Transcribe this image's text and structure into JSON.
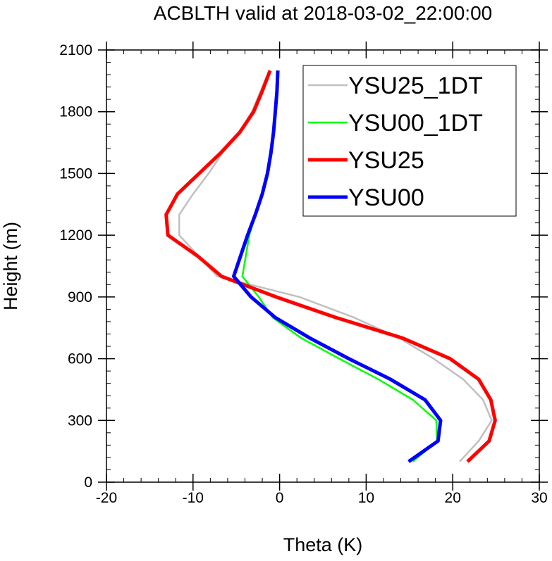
{
  "chart_data": {
    "type": "line",
    "title": "ACBLTH valid at 2018-03-02_22:00:00",
    "xlabel": "Theta (K)",
    "ylabel": "Height (m)",
    "xlim": [
      -20,
      30
    ],
    "ylim": [
      0,
      2100
    ],
    "xticks": [
      -20,
      -10,
      0,
      10,
      20,
      30
    ],
    "yticks": [
      0,
      300,
      600,
      900,
      1200,
      1500,
      1800,
      2100
    ],
    "grid": false,
    "legend_position": "top-right",
    "series": [
      {
        "name": "YSU25_1DT",
        "color": "#c0c0c0",
        "width": "thin",
        "points": [
          [
            20.8,
            100
          ],
          [
            23,
            200
          ],
          [
            24.5,
            300
          ],
          [
            23.5,
            400
          ],
          [
            21.2,
            500
          ],
          [
            17.8,
            600
          ],
          [
            13.8,
            700
          ],
          [
            8.6,
            800
          ],
          [
            2.3,
            900
          ],
          [
            -7.2,
            1000
          ],
          [
            -9.4,
            1100
          ],
          [
            -11.6,
            1200
          ],
          [
            -11.6,
            1300
          ],
          [
            -10,
            1400
          ],
          [
            -8.2,
            1500
          ],
          [
            -6.6,
            1600
          ],
          [
            -4.6,
            1700
          ],
          [
            -3.2,
            1800
          ],
          [
            -2.2,
            1900
          ],
          [
            -1.2,
            2000
          ]
        ]
      },
      {
        "name": "YSU00_1DT",
        "color": "#00ff00",
        "width": "thin",
        "points": [
          [
            15.4,
            100
          ],
          [
            18.2,
            200
          ],
          [
            18.1,
            300
          ],
          [
            15.4,
            400
          ],
          [
            11.4,
            500
          ],
          [
            6.9,
            600
          ],
          [
            2.5,
            700
          ],
          [
            -0.8,
            800
          ],
          [
            -2.4,
            900
          ],
          [
            -4.3,
            1000
          ],
          [
            -3.9,
            1100
          ],
          [
            -3.5,
            1200
          ],
          [
            -2.8,
            1300
          ],
          [
            -2,
            1400
          ],
          [
            -1.4,
            1500
          ],
          [
            -1,
            1600
          ],
          [
            -0.7,
            1700
          ],
          [
            -0.5,
            1800
          ],
          [
            -0.4,
            1900
          ],
          [
            -0.3,
            2000
          ]
        ]
      },
      {
        "name": "YSU25",
        "color": "#ff0000",
        "width": "thick",
        "points": [
          [
            21.7,
            100
          ],
          [
            24.2,
            200
          ],
          [
            24.9,
            300
          ],
          [
            24.4,
            400
          ],
          [
            23,
            500
          ],
          [
            19.7,
            600
          ],
          [
            14.2,
            700
          ],
          [
            6.5,
            800
          ],
          [
            -0.4,
            900
          ],
          [
            -6.7,
            1000
          ],
          [
            -9.5,
            1100
          ],
          [
            -12.9,
            1200
          ],
          [
            -13.1,
            1300
          ],
          [
            -11.8,
            1400
          ],
          [
            -9.3,
            1500
          ],
          [
            -6.8,
            1600
          ],
          [
            -4.6,
            1700
          ],
          [
            -3,
            1800
          ],
          [
            -2,
            1900
          ],
          [
            -1.1,
            2000
          ]
        ]
      },
      {
        "name": "YSU00",
        "color": "#0000ff",
        "width": "thick",
        "points": [
          [
            14.9,
            100
          ],
          [
            18.3,
            200
          ],
          [
            18.6,
            300
          ],
          [
            16.8,
            400
          ],
          [
            12.8,
            500
          ],
          [
            8,
            600
          ],
          [
            3.5,
            700
          ],
          [
            -0.5,
            800
          ],
          [
            -3.3,
            900
          ],
          [
            -5.3,
            1000
          ],
          [
            -4.5,
            1100
          ],
          [
            -3.7,
            1200
          ],
          [
            -2.8,
            1300
          ],
          [
            -2,
            1400
          ],
          [
            -1.4,
            1500
          ],
          [
            -1,
            1600
          ],
          [
            -0.7,
            1700
          ],
          [
            -0.5,
            1800
          ],
          [
            -0.3,
            1900
          ],
          [
            -0.2,
            2000
          ]
        ]
      }
    ]
  }
}
